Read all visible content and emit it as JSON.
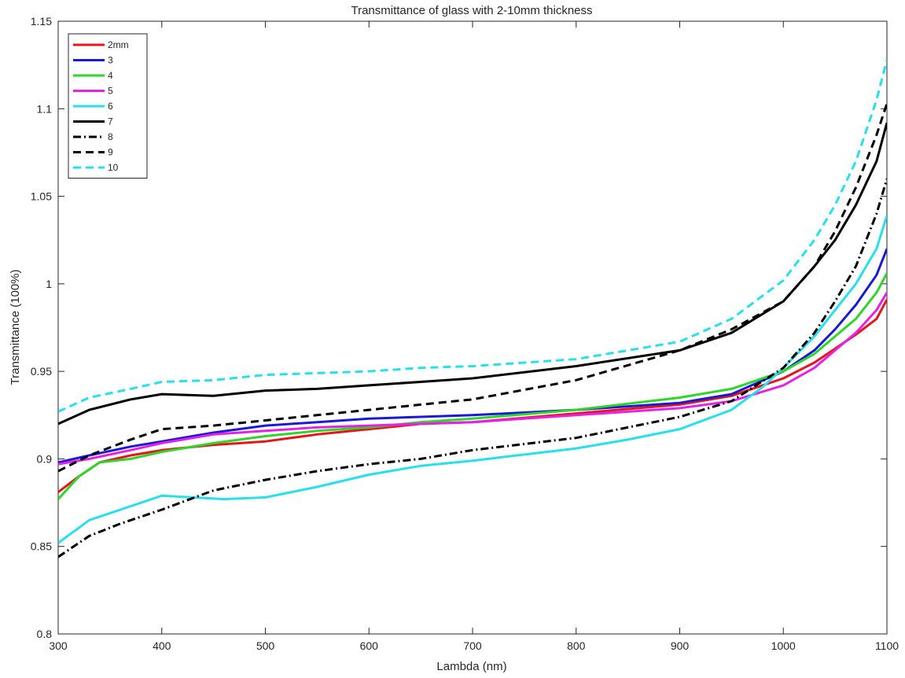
{
  "chart_data": {
    "type": "line",
    "title": "Transmittance of glass with 2-10mm thickness",
    "xlabel": "Lambda (nm)",
    "ylabel": "Transmittance (100%)",
    "xlim": [
      300,
      1100
    ],
    "ylim": [
      0.8,
      1.15
    ],
    "xticks": [
      300,
      400,
      500,
      600,
      700,
      800,
      900,
      1000,
      1100
    ],
    "yticks": [
      0.8,
      0.85,
      0.9,
      0.95,
      1,
      1.05,
      1.1,
      1.15
    ],
    "xtick_labels": [
      "300",
      "400",
      "500",
      "600",
      "700",
      "800",
      "900",
      "1000",
      "1100"
    ],
    "ytick_labels": [
      "0.8",
      "0.85",
      "0.9",
      "0.95",
      "1",
      "1.05",
      "1.1",
      "1.15"
    ],
    "grid": false,
    "legend_position": "top-left",
    "series": [
      {
        "name": "2mm",
        "color": "#e8141c",
        "dash": "solid",
        "points": [
          [
            300,
            0.881
          ],
          [
            320,
            0.89
          ],
          [
            340,
            0.898
          ],
          [
            370,
            0.902
          ],
          [
            400,
            0.905
          ],
          [
            450,
            0.908
          ],
          [
            500,
            0.91
          ],
          [
            550,
            0.914
          ],
          [
            600,
            0.917
          ],
          [
            650,
            0.92
          ],
          [
            700,
            0.921
          ],
          [
            800,
            0.926
          ],
          [
            900,
            0.931
          ],
          [
            950,
            0.936
          ],
          [
            1000,
            0.946
          ],
          [
            1030,
            0.955
          ],
          [
            1050,
            0.963
          ],
          [
            1070,
            0.971
          ],
          [
            1090,
            0.98
          ],
          [
            1100,
            0.991
          ]
        ]
      },
      {
        "name": "3",
        "color": "#1a1ad6",
        "dash": "solid",
        "points": [
          [
            300,
            0.898
          ],
          [
            330,
            0.902
          ],
          [
            370,
            0.907
          ],
          [
            400,
            0.91
          ],
          [
            450,
            0.915
          ],
          [
            500,
            0.919
          ],
          [
            550,
            0.921
          ],
          [
            600,
            0.923
          ],
          [
            650,
            0.924
          ],
          [
            700,
            0.925
          ],
          [
            800,
            0.928
          ],
          [
            900,
            0.932
          ],
          [
            950,
            0.937
          ],
          [
            1000,
            0.95
          ],
          [
            1030,
            0.962
          ],
          [
            1050,
            0.974
          ],
          [
            1070,
            0.988
          ],
          [
            1090,
            1.005
          ],
          [
            1100,
            1.02
          ]
        ]
      },
      {
        "name": "4",
        "color": "#2fd62a",
        "dash": "solid",
        "points": [
          [
            300,
            0.877
          ],
          [
            320,
            0.89
          ],
          [
            340,
            0.898
          ],
          [
            370,
            0.9
          ],
          [
            400,
            0.904
          ],
          [
            450,
            0.909
          ],
          [
            500,
            0.913
          ],
          [
            550,
            0.916
          ],
          [
            600,
            0.918
          ],
          [
            650,
            0.921
          ],
          [
            700,
            0.923
          ],
          [
            800,
            0.928
          ],
          [
            900,
            0.935
          ],
          [
            950,
            0.94
          ],
          [
            1000,
            0.95
          ],
          [
            1030,
            0.96
          ],
          [
            1050,
            0.97
          ],
          [
            1070,
            0.98
          ],
          [
            1090,
            0.995
          ],
          [
            1100,
            1.006
          ]
        ]
      },
      {
        "name": "5",
        "color": "#e621e6",
        "dash": "solid",
        "points": [
          [
            300,
            0.897
          ],
          [
            330,
            0.9
          ],
          [
            370,
            0.905
          ],
          [
            400,
            0.909
          ],
          [
            450,
            0.914
          ],
          [
            500,
            0.916
          ],
          [
            550,
            0.918
          ],
          [
            600,
            0.919
          ],
          [
            650,
            0.92
          ],
          [
            700,
            0.921
          ],
          [
            800,
            0.925
          ],
          [
            900,
            0.929
          ],
          [
            950,
            0.933
          ],
          [
            1000,
            0.942
          ],
          [
            1030,
            0.952
          ],
          [
            1050,
            0.962
          ],
          [
            1070,
            0.972
          ],
          [
            1090,
            0.985
          ],
          [
            1100,
            0.995
          ]
        ]
      },
      {
        "name": "6",
        "color": "#27e0ec",
        "dash": "solid",
        "points": [
          [
            300,
            0.852
          ],
          [
            330,
            0.865
          ],
          [
            360,
            0.871
          ],
          [
            400,
            0.879
          ],
          [
            430,
            0.878
          ],
          [
            460,
            0.877
          ],
          [
            500,
            0.878
          ],
          [
            550,
            0.884
          ],
          [
            600,
            0.891
          ],
          [
            650,
            0.896
          ],
          [
            700,
            0.899
          ],
          [
            800,
            0.906
          ],
          [
            850,
            0.911
          ],
          [
            900,
            0.917
          ],
          [
            950,
            0.928
          ],
          [
            980,
            0.941
          ],
          [
            1000,
            0.952
          ],
          [
            1030,
            0.97
          ],
          [
            1050,
            0.985
          ],
          [
            1070,
            1.0
          ],
          [
            1090,
            1.02
          ],
          [
            1100,
            1.039
          ]
        ]
      },
      {
        "name": "7",
        "color": "#000000",
        "dash": "solid",
        "points": [
          [
            300,
            0.92
          ],
          [
            330,
            0.928
          ],
          [
            370,
            0.934
          ],
          [
            400,
            0.937
          ],
          [
            450,
            0.936
          ],
          [
            500,
            0.939
          ],
          [
            550,
            0.94
          ],
          [
            600,
            0.942
          ],
          [
            650,
            0.944
          ],
          [
            700,
            0.946
          ],
          [
            800,
            0.953
          ],
          [
            900,
            0.962
          ],
          [
            950,
            0.972
          ],
          [
            1000,
            0.99
          ],
          [
            1030,
            1.01
          ],
          [
            1050,
            1.025
          ],
          [
            1070,
            1.045
          ],
          [
            1090,
            1.07
          ],
          [
            1100,
            1.092
          ]
        ]
      },
      {
        "name": "8",
        "color": "#000000",
        "dash": "dashdot",
        "points": [
          [
            300,
            0.844
          ],
          [
            330,
            0.856
          ],
          [
            360,
            0.863
          ],
          [
            400,
            0.871
          ],
          [
            450,
            0.882
          ],
          [
            500,
            0.888
          ],
          [
            550,
            0.893
          ],
          [
            600,
            0.897
          ],
          [
            650,
            0.9
          ],
          [
            700,
            0.905
          ],
          [
            800,
            0.912
          ],
          [
            900,
            0.924
          ],
          [
            950,
            0.933
          ],
          [
            1000,
            0.952
          ],
          [
            1030,
            0.972
          ],
          [
            1050,
            0.99
          ],
          [
            1070,
            1.01
          ],
          [
            1090,
            1.04
          ],
          [
            1100,
            1.06
          ]
        ]
      },
      {
        "name": "9",
        "color": "#000000",
        "dash": "dashed",
        "points": [
          [
            300,
            0.893
          ],
          [
            330,
            0.902
          ],
          [
            370,
            0.911
          ],
          [
            400,
            0.917
          ],
          [
            450,
            0.919
          ],
          [
            500,
            0.922
          ],
          [
            550,
            0.925
          ],
          [
            600,
            0.928
          ],
          [
            650,
            0.931
          ],
          [
            700,
            0.934
          ],
          [
            800,
            0.945
          ],
          [
            900,
            0.962
          ],
          [
            950,
            0.974
          ],
          [
            1000,
            0.99
          ],
          [
            1030,
            1.01
          ],
          [
            1050,
            1.03
          ],
          [
            1070,
            1.055
          ],
          [
            1090,
            1.085
          ],
          [
            1100,
            1.103
          ]
        ]
      },
      {
        "name": "10",
        "color": "#27e0ec",
        "dash": "dashed",
        "points": [
          [
            300,
            0.927
          ],
          [
            330,
            0.935
          ],
          [
            370,
            0.94
          ],
          [
            400,
            0.944
          ],
          [
            450,
            0.945
          ],
          [
            500,
            0.948
          ],
          [
            550,
            0.949
          ],
          [
            600,
            0.95
          ],
          [
            650,
            0.952
          ],
          [
            700,
            0.953
          ],
          [
            800,
            0.957
          ],
          [
            900,
            0.967
          ],
          [
            950,
            0.98
          ],
          [
            1000,
            1.002
          ],
          [
            1030,
            1.025
          ],
          [
            1050,
            1.045
          ],
          [
            1070,
            1.07
          ],
          [
            1090,
            1.105
          ],
          [
            1100,
            1.128
          ]
        ]
      }
    ]
  }
}
